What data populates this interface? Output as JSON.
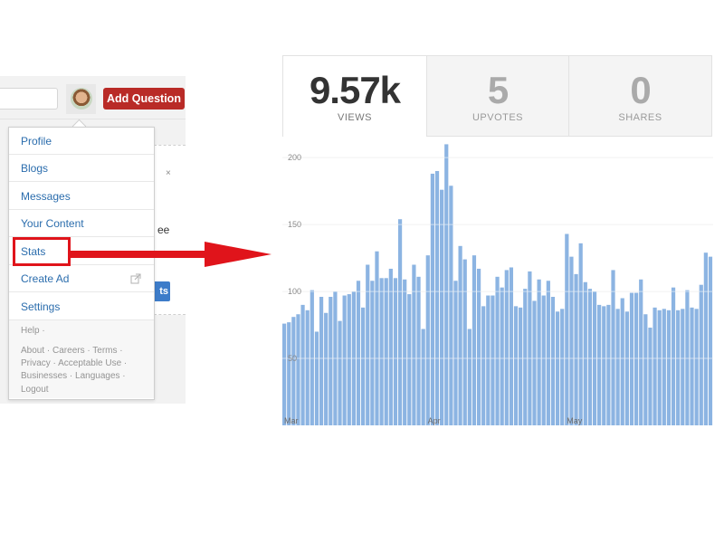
{
  "header": {
    "add_question_label": "Add Question"
  },
  "menu": {
    "items": [
      {
        "label": "Profile"
      },
      {
        "label": "Blogs"
      },
      {
        "label": "Messages"
      },
      {
        "label": "Your Content"
      },
      {
        "label": "Stats"
      },
      {
        "label": "Create Ad"
      },
      {
        "label": "Settings"
      }
    ],
    "footer": {
      "help": "Help ·",
      "line1": "About · Careers · Terms ·",
      "line2": "Privacy · Acceptable Use ·",
      "line3": "Businesses · Languages ·",
      "line4": "Logout"
    }
  },
  "background_card": {
    "close_glyph": "×",
    "text_fragment": "ee",
    "button_fragment": "ts"
  },
  "stats": {
    "views": {
      "value": "9.57k",
      "label": "VIEWS"
    },
    "upvotes": {
      "value": "5",
      "label": "UPVOTES"
    },
    "shares": {
      "value": "0",
      "label": "SHARES"
    }
  },
  "colors": {
    "brand_red": "#b92b27",
    "link_blue": "#2b6dad",
    "bar_blue": "#8cb4e2",
    "highlight_red": "#e0141b"
  },
  "icons": {
    "external_link": "external-link-icon",
    "arrow": "right-arrow-icon"
  },
  "chart_data": {
    "type": "bar",
    "title": "",
    "xlabel": "",
    "ylabel": "",
    "ylim": [
      0,
      215
    ],
    "yticks": [
      50,
      100,
      150,
      200
    ],
    "x_tick_labels": [
      {
        "label": "Mar",
        "index": 0
      },
      {
        "label": "Apr",
        "index": 31
      },
      {
        "label": "May",
        "index": 61
      }
    ],
    "values": [
      76,
      77,
      81,
      83,
      90,
      86,
      101,
      70,
      96,
      84,
      96,
      100,
      78,
      97,
      98,
      100,
      108,
      88,
      120,
      108,
      130,
      110,
      110,
      117,
      110,
      154,
      109,
      98,
      120,
      111,
      72,
      127,
      188,
      190,
      176,
      210,
      179,
      108,
      134,
      124,
      72,
      127,
      117,
      89,
      97,
      97,
      111,
      103,
      116,
      118,
      89,
      88,
      102,
      115,
      93,
      109,
      97,
      108,
      96,
      85,
      87,
      143,
      126,
      113,
      136,
      107,
      102,
      100,
      90,
      89,
      90,
      116,
      87,
      95,
      85,
      99,
      99,
      109,
      83,
      73,
      88,
      86,
      87,
      86,
      103,
      86,
      87,
      101,
      88,
      87,
      105,
      129,
      126
    ]
  }
}
